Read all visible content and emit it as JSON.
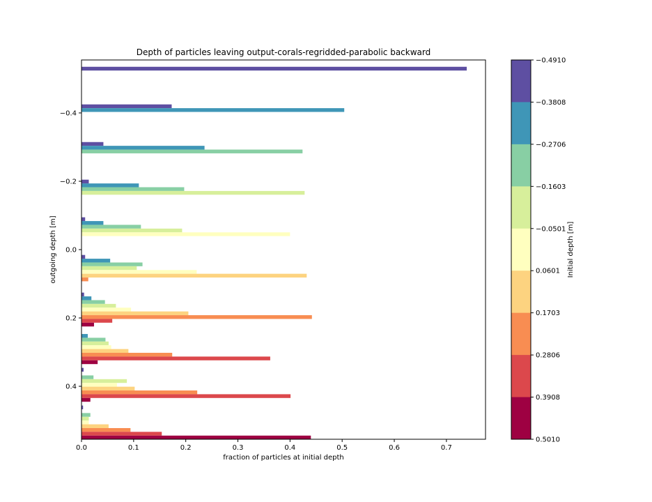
{
  "chart_data": {
    "type": "bar",
    "orientation": "horizontal",
    "title": "Depth of particles leaving output-corals-regridded-parabolic backward",
    "xlabel": "fraction of particles at initial depth",
    "ylabel": "outgoing depth [m]",
    "xlim": [
      0,
      0.775
    ],
    "ylim": [
      0.555,
      -0.555
    ],
    "y_inverted": true,
    "x_ticks": [
      0.0,
      0.1,
      0.2,
      0.3,
      0.4,
      0.5,
      0.6,
      0.7
    ],
    "x_tick_labels": [
      "0.0",
      "0.1",
      "0.2",
      "0.3",
      "0.4",
      "0.5",
      "0.6",
      "0.7"
    ],
    "y_ticks": [
      -0.4,
      -0.2,
      0.0,
      0.2,
      0.4
    ],
    "y_tick_labels": [
      "−0.4",
      "−0.2",
      "0.0",
      "0.2",
      "0.4"
    ],
    "bin_centers": [
      -0.4855,
      -0.3754,
      -0.2652,
      -0.1551,
      -0.045,
      0.0652,
      0.1754,
      0.2855,
      0.3957,
      0.5058
    ],
    "colorbar": {
      "label": "Initial depth [m]",
      "boundaries": [
        -0.491,
        -0.3808,
        -0.2706,
        -0.1603,
        -0.0501,
        0.0601,
        0.1703,
        0.2806,
        0.3908,
        0.501
      ],
      "tick_labels": [
        "−0.4910",
        "−0.3808",
        "−0.2706",
        "−0.1603",
        "−0.0501",
        "0.0601",
        "0.1703",
        "0.2806",
        "0.3908",
        "0.5010"
      ],
      "colors": [
        "#5e4fa2",
        "#3f96b7",
        "#88cfa4",
        "#d7ef9b",
        "#ffffbf",
        "#fdd380",
        "#f88d52",
        "#dc484c",
        "#9e0142"
      ]
    },
    "series": [
      {
        "initial_depth_bin": 0,
        "color": "#5e4fa2",
        "values": [
          0.739,
          0.173,
          0.042,
          0.014,
          0.007,
          0.007,
          0.005,
          0.0,
          0.004,
          0.003
        ]
      },
      {
        "initial_depth_bin": 1,
        "color": "#3f96b7",
        "values": [
          0.0,
          0.504,
          0.236,
          0.11,
          0.042,
          0.055,
          0.019,
          0.012,
          0.0,
          0.0
        ]
      },
      {
        "initial_depth_bin": 2,
        "color": "#88cfa4",
        "values": [
          0.0,
          0.0,
          0.424,
          0.197,
          0.114,
          0.117,
          0.045,
          0.046,
          0.023,
          0.017
        ]
      },
      {
        "initial_depth_bin": 3,
        "color": "#d7ef9b",
        "values": [
          0.0,
          0.0,
          0.0,
          0.428,
          0.193,
          0.106,
          0.066,
          0.052,
          0.087,
          0.014
        ]
      },
      {
        "initial_depth_bin": 4,
        "color": "#ffffbf",
        "values": [
          0.0,
          0.0,
          0.0,
          0.0,
          0.4,
          0.221,
          0.095,
          0.057,
          0.068,
          0.014
        ]
      },
      {
        "initial_depth_bin": 5,
        "color": "#fdd380",
        "values": [
          0.0,
          0.0,
          0.0,
          0.0,
          0.0,
          0.432,
          0.205,
          0.09,
          0.102,
          0.052
        ]
      },
      {
        "initial_depth_bin": 6,
        "color": "#f88d52",
        "values": [
          0.0,
          0.0,
          0.0,
          0.0,
          0.0,
          0.013,
          0.442,
          0.174,
          0.222,
          0.094
        ]
      },
      {
        "initial_depth_bin": 7,
        "color": "#dc484c",
        "values": [
          0.0,
          0.0,
          0.0,
          0.0,
          0.0,
          0.0,
          0.059,
          0.362,
          0.401,
          0.154
        ]
      },
      {
        "initial_depth_bin": 8,
        "color": "#9e0142",
        "values": [
          0.0,
          0.0,
          0.0,
          0.0,
          0.0,
          0.0,
          0.024,
          0.031,
          0.017,
          0.44
        ]
      }
    ]
  }
}
